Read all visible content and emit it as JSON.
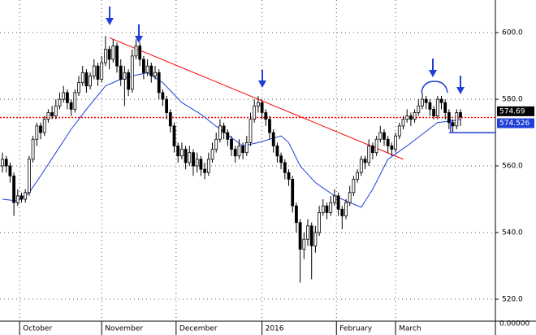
{
  "chart_data": {
    "type": "candlestick",
    "ylim": [
      513.4,
      609.8
    ],
    "yticks": [
      {
        "value": 520,
        "label": "520.0"
      },
      {
        "value": 540,
        "label": "540.0"
      },
      {
        "value": 560,
        "label": "560.0"
      },
      {
        "value": 580,
        "label": "580.0"
      },
      {
        "value": 600,
        "label": "600.0"
      }
    ],
    "xlim": [
      -0.64,
      129.15
    ],
    "xticks": [
      {
        "value": 4.5,
        "label": "October"
      },
      {
        "value": 26,
        "label": "November"
      },
      {
        "value": 45.5,
        "label": "December"
      },
      {
        "value": 68,
        "label": "2016"
      },
      {
        "value": 87.5,
        "label": "February"
      },
      {
        "value": 103,
        "label": "March"
      }
    ],
    "grid": true,
    "lower_axis_label": "0.00000",
    "ohlc": [
      [
        560,
        564,
        558,
        562
      ],
      [
        562,
        563,
        558,
        560
      ],
      [
        560,
        561,
        555,
        557
      ],
      [
        557,
        558,
        545,
        549
      ],
      [
        549,
        553,
        548,
        551
      ],
      [
        551,
        552,
        549,
        550
      ],
      [
        550,
        553,
        549,
        552
      ],
      [
        552,
        563,
        551,
        562
      ],
      [
        562,
        569,
        561,
        568
      ],
      [
        568,
        573,
        566,
        572
      ],
      [
        572,
        573,
        568,
        570
      ],
      [
        570,
        575,
        569,
        574
      ],
      [
        574,
        577,
        573,
        576
      ],
      [
        576,
        578,
        574,
        575
      ],
      [
        575,
        580,
        574,
        578
      ],
      [
        578,
        582,
        577,
        580
      ],
      [
        580,
        584,
        579,
        582
      ],
      [
        582,
        583,
        577,
        579
      ],
      [
        579,
        580,
        575,
        577
      ],
      [
        577,
        583,
        576,
        582
      ],
      [
        582,
        587,
        581,
        585
      ],
      [
        585,
        590,
        584,
        588
      ],
      [
        588,
        589,
        582,
        584
      ],
      [
        584,
        588,
        583,
        587
      ],
      [
        587,
        592,
        586,
        590
      ],
      [
        590,
        591,
        584,
        586
      ],
      [
        586,
        593,
        585,
        591
      ],
      [
        591,
        599,
        590,
        595
      ],
      [
        595,
        596,
        589,
        592
      ],
      [
        592,
        598,
        591,
        596
      ],
      [
        596,
        597,
        588,
        590
      ],
      [
        590,
        592,
        584,
        586
      ],
      [
        586,
        590,
        578,
        588
      ],
      [
        588,
        589,
        581,
        583
      ],
      [
        583,
        595,
        582,
        593
      ],
      [
        593,
        598,
        592,
        596
      ],
      [
        596,
        597,
        590,
        592
      ],
      [
        592,
        593,
        586,
        588
      ],
      [
        588,
        592,
        587,
        590
      ],
      [
        590,
        591,
        585,
        587
      ],
      [
        587,
        590,
        586,
        588
      ],
      [
        588,
        589,
        580,
        582
      ],
      [
        582,
        583,
        578,
        580
      ],
      [
        580,
        581,
        574,
        576
      ],
      [
        576,
        577,
        570,
        572
      ],
      [
        572,
        573,
        564,
        566
      ],
      [
        566,
        567,
        561,
        563
      ],
      [
        563,
        567,
        562,
        565
      ],
      [
        565,
        566,
        559,
        561
      ],
      [
        561,
        566,
        560,
        564
      ],
      [
        564,
        565,
        557,
        560
      ],
      [
        560,
        564,
        558,
        562
      ],
      [
        562,
        563,
        557,
        559
      ],
      [
        559,
        561,
        556,
        558
      ],
      [
        558,
        564,
        557,
        562
      ],
      [
        562,
        567,
        561,
        565
      ],
      [
        565,
        570,
        564,
        568
      ],
      [
        568,
        574,
        567,
        572
      ],
      [
        572,
        573,
        568,
        570
      ],
      [
        570,
        571,
        566,
        568
      ],
      [
        568,
        569,
        563,
        565
      ],
      [
        565,
        566,
        561,
        563
      ],
      [
        563,
        568,
        562,
        566
      ],
      [
        566,
        567,
        562,
        564
      ],
      [
        564,
        569,
        563,
        567
      ],
      [
        567,
        576,
        566,
        574
      ],
      [
        574,
        580,
        573,
        578
      ],
      [
        578,
        581,
        576,
        579
      ],
      [
        579,
        580,
        574,
        576
      ],
      [
        576,
        577,
        572,
        574
      ],
      [
        574,
        575,
        568,
        570
      ],
      [
        570,
        571,
        564,
        566
      ],
      [
        566,
        567,
        561,
        563
      ],
      [
        563,
        564,
        559,
        561
      ],
      [
        561,
        562,
        556,
        558
      ],
      [
        558,
        559,
        554,
        556
      ],
      [
        556,
        557,
        546,
        548
      ],
      [
        548,
        549,
        540,
        543
      ],
      [
        543,
        544,
        525,
        535
      ],
      [
        535,
        540,
        532,
        538
      ],
      [
        538,
        544,
        536,
        542
      ],
      [
        542,
        543,
        526,
        536
      ],
      [
        536,
        542,
        534,
        540
      ],
      [
        540,
        548,
        539,
        546
      ],
      [
        546,
        550,
        545,
        548
      ],
      [
        548,
        549,
        544,
        546
      ],
      [
        546,
        551,
        545,
        549
      ],
      [
        549,
        553,
        548,
        551
      ],
      [
        551,
        552,
        545,
        547
      ],
      [
        547,
        548,
        541,
        545
      ],
      [
        545,
        550,
        544,
        549
      ],
      [
        549,
        554,
        548,
        552
      ],
      [
        552,
        557,
        551,
        556
      ],
      [
        556,
        559,
        555,
        558
      ],
      [
        558,
        563,
        557,
        562
      ],
      [
        562,
        563,
        559,
        561
      ],
      [
        561,
        568,
        560,
        566
      ],
      [
        566,
        567,
        562,
        564
      ],
      [
        564,
        569,
        563,
        568
      ],
      [
        568,
        572,
        567,
        570
      ],
      [
        570,
        571,
        566,
        568
      ],
      [
        568,
        569,
        564,
        566
      ],
      [
        566,
        567,
        563,
        565
      ],
      [
        565,
        570,
        564,
        569
      ],
      [
        569,
        573,
        568,
        572
      ],
      [
        572,
        575,
        571,
        574
      ],
      [
        574,
        577,
        573,
        575
      ],
      [
        575,
        576,
        572,
        574
      ],
      [
        574,
        577,
        573,
        576
      ],
      [
        576,
        580,
        575,
        578
      ],
      [
        578,
        582,
        577,
        580
      ],
      [
        580,
        581,
        577,
        579
      ],
      [
        579,
        580,
        575,
        577
      ],
      [
        577,
        578,
        574,
        575
      ],
      [
        575,
        581,
        574,
        580
      ],
      [
        580,
        581,
        577,
        579
      ],
      [
        579,
        580,
        574,
        576
      ],
      [
        576,
        577,
        571,
        573
      ],
      [
        573,
        574,
        570,
        572
      ],
      [
        572,
        577,
        571,
        576
      ],
      [
        576,
        577,
        572,
        574.69
      ]
    ],
    "moving_average": {
      "color": "#1f3fd8",
      "x": [
        0,
        4,
        7,
        10,
        14,
        18,
        22,
        27,
        31,
        34,
        38,
        42,
        47,
        52,
        57,
        63,
        67,
        73,
        75,
        78,
        82,
        87,
        91,
        94,
        97,
        101,
        106,
        110,
        114,
        119,
        120
      ],
      "values": [
        550,
        549.5,
        552,
        557,
        564,
        571,
        577,
        584,
        586,
        587,
        588,
        585,
        579,
        575.5,
        571,
        566,
        567,
        569,
        567,
        560,
        555,
        551,
        549,
        547.6,
        553,
        562,
        566,
        569.5,
        573,
        573.7,
        574
      ]
    },
    "trendline": {
      "color": "#ff0000",
      "x": [
        28,
        105
      ],
      "values": [
        598.5,
        562
      ]
    },
    "support": {
      "color": "#1f3fd8",
      "x": [
        117,
        129.15
      ],
      "value": 570
    },
    "price_labels": [
      {
        "value": 574.69,
        "label": "574.69",
        "color": "#000000"
      },
      {
        "value": 574.526,
        "label": "574.526",
        "color": "#1f3fd8"
      }
    ]
  }
}
